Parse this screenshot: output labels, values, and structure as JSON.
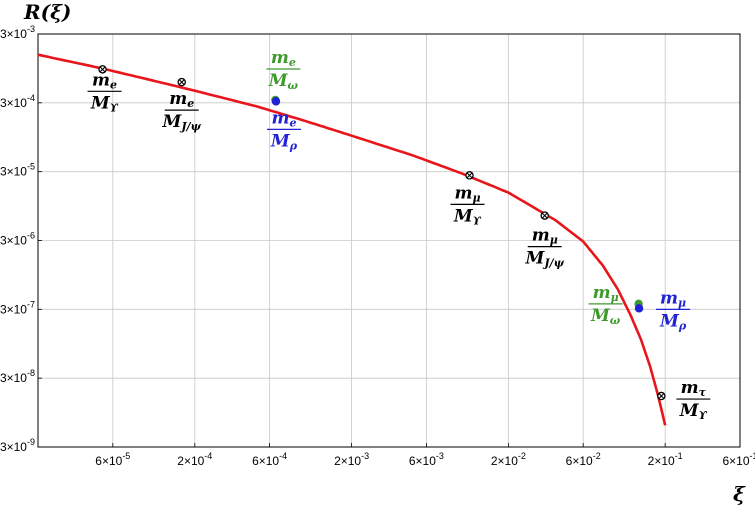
{
  "chart_data": {
    "type": "line",
    "title": "",
    "xlabel": "ξ",
    "ylabel": "R(ξ)",
    "x_scale": "log",
    "y_scale": "log",
    "xlim": [
      2e-05,
      0.6
    ],
    "ylim": [
      3e-09,
      0.003
    ],
    "grid": true,
    "x_ticks": [
      {
        "value": 6e-05,
        "mant": "6",
        "exp": "-5"
      },
      {
        "value": 0.0002,
        "mant": "2",
        "exp": "-4"
      },
      {
        "value": 0.0006,
        "mant": "6",
        "exp": "-4"
      },
      {
        "value": 0.002,
        "mant": "2",
        "exp": "-3"
      },
      {
        "value": 0.006,
        "mant": "6",
        "exp": "-3"
      },
      {
        "value": 0.02,
        "mant": "2",
        "exp": "-2"
      },
      {
        "value": 0.06,
        "mant": "6",
        "exp": "-2"
      },
      {
        "value": 0.2,
        "mant": "2",
        "exp": "-1"
      },
      {
        "value": 0.6,
        "mant": "6",
        "exp": "-1"
      }
    ],
    "y_ticks": [
      {
        "value": 3e-09,
        "mant": "3",
        "exp": "-9"
      },
      {
        "value": 3e-08,
        "mant": "3",
        "exp": "-8"
      },
      {
        "value": 3e-07,
        "mant": "3",
        "exp": "-7"
      },
      {
        "value": 3e-06,
        "mant": "3",
        "exp": "-6"
      },
      {
        "value": 3e-05,
        "mant": "3",
        "exp": "-5"
      },
      {
        "value": 0.0003,
        "mant": "3",
        "exp": "-4"
      },
      {
        "value": 0.003,
        "mant": "3",
        "exp": "-3"
      }
    ],
    "curve": {
      "color": "#e8161b",
      "x": [
        2e-05,
        5e-05,
        0.0001,
        0.0002,
        0.0005,
        0.001,
        0.002,
        0.005,
        0.01,
        0.02,
        0.04,
        0.06,
        0.08,
        0.1,
        0.12,
        0.14,
        0.16,
        0.18,
        0.2
      ],
      "y": [
        0.0015,
        0.00096,
        0.00066,
        0.00045,
        0.000265,
        0.000165,
        0.0001,
        5.1e-05,
        2.85e-05,
        1.49e-05,
        5.9e-06,
        2.9e-06,
        1.3e-06,
        5.8e-07,
        2.5e-07,
        1.1e-07,
        4.5e-08,
        1.7e-08,
        6.2e-09
      ]
    },
    "points": [
      {
        "id": "me-mupsilon",
        "x": 5.16e-05,
        "y": 0.00092,
        "color": "#000000",
        "marker": "otimes",
        "num": "m",
        "num_sub": "e",
        "den": "M",
        "den_sub": "ϒ",
        "label_color": "#000000"
      },
      {
        "id": "me-mjpsi",
        "x": 0.000165,
        "y": 0.0006,
        "color": "#000000",
        "marker": "otimes",
        "num": "m",
        "num_sub": "e",
        "den": "M",
        "den_sub": "J/ψ",
        "label_color": "#000000"
      },
      {
        "id": "me-momega",
        "x": 0.000653,
        "y": 0.00033,
        "color": "#3f9a2d",
        "marker": "dot",
        "num": "m",
        "num_sub": "e",
        "den": "M",
        "den_sub": "ω",
        "label_color": "#3f9a2d"
      },
      {
        "id": "me-mrho",
        "x": 0.000659,
        "y": 0.000315,
        "color": "#2121d6",
        "marker": "dot",
        "num": "m",
        "num_sub": "e",
        "den": "M",
        "den_sub": "ρ",
        "label_color": "#2121d6"
      },
      {
        "id": "mmu-mupsilon",
        "x": 0.0113,
        "y": 2.65e-05,
        "color": "#000000",
        "marker": "otimes",
        "num": "m",
        "num_sub": "μ",
        "den": "M",
        "den_sub": "ϒ",
        "label_color": "#000000"
      },
      {
        "id": "mmu-mjpsi",
        "x": 0.0341,
        "y": 6.9e-06,
        "color": "#000000",
        "marker": "otimes",
        "num": "m",
        "num_sub": "μ",
        "den": "M",
        "den_sub": "J/ψ",
        "label_color": "#000000"
      },
      {
        "id": "mmu-momega",
        "x": 0.1354,
        "y": 3.6e-07,
        "color": "#3f9a2d",
        "marker": "dot",
        "num": "m",
        "num_sub": "μ",
        "den": "M",
        "den_sub": "ω",
        "label_color": "#3f9a2d"
      },
      {
        "id": "mmu-mrho",
        "x": 0.1363,
        "y": 3.1e-07,
        "color": "#2121d6",
        "marker": "dot",
        "num": "m",
        "num_sub": "μ",
        "den": "M",
        "den_sub": "ρ",
        "label_color": "#2121d6"
      },
      {
        "id": "mtau-mupsilon",
        "x": 0.1891,
        "y": 1.65e-08,
        "color": "#000000",
        "marker": "otimes",
        "num": "m",
        "num_sub": "τ",
        "den": "M",
        "den_sub": "ϒ",
        "label_color": "#000000"
      }
    ]
  }
}
